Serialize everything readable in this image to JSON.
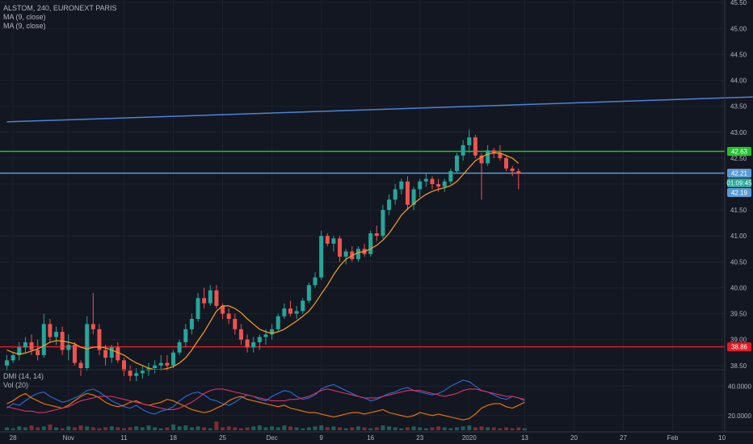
{
  "chart_data": {
    "type": "candlestick",
    "symbol_line": "ALSTOM, 240, EURONEXT PARIS",
    "indicators": [
      "MA (9, close)",
      "MA (9, close)"
    ],
    "sub_indicators": [
      "DMI (14, 14)",
      "Vol (20)"
    ],
    "y_ticks": [
      "45.50",
      "45.00",
      "44.50",
      "44.00",
      "43.50",
      "43.00",
      "42.50",
      "42.00",
      "41.50",
      "41.00",
      "40.50",
      "40.00",
      "39.50",
      "39.00",
      "38.50"
    ],
    "y_tick_values": [
      45.5,
      45,
      44.5,
      44,
      43.5,
      43,
      42.5,
      42,
      41.5,
      41,
      40.5,
      40,
      39.5,
      39,
      38.5
    ],
    "x_ticks": [
      "28",
      "Nov",
      "11",
      "18",
      "25",
      "Dec",
      "9",
      "16",
      "23",
      "2020",
      "13",
      "20",
      "27",
      "Feb",
      "10"
    ],
    "x_tick_bar_index": [
      1,
      10,
      19,
      27,
      35,
      43,
      51,
      59,
      67,
      75,
      84,
      92,
      100,
      108,
      116
    ],
    "ylim": [
      38.45,
      45.55
    ],
    "sub_ticks": [
      "40.0000",
      "20.0000"
    ],
    "sub_tick_values": [
      40,
      20
    ],
    "sub_ylim": [
      10,
      50
    ],
    "levels": [
      {
        "value": 42.63,
        "label": "42.63",
        "color": "#22c22a"
      },
      {
        "value": 42.21,
        "label": "42.21",
        "color": "#5b9bd5"
      },
      {
        "value": 38.86,
        "label": "38.86",
        "color": "#e31b23"
      }
    ],
    "price_tags": [
      {
        "label": "01:09:45",
        "bg": "#26a69a"
      },
      {
        "label": "42.19",
        "bg": "#5b9bd5"
      }
    ],
    "trendline": {
      "from": [
        0,
        43.2
      ],
      "to": [
        121,
        43.68
      ],
      "color": "#4d83d6"
    },
    "candles": [
      [
        38.5,
        38.7,
        38.4,
        38.6
      ],
      [
        38.6,
        38.75,
        38.55,
        38.7
      ],
      [
        38.7,
        38.95,
        38.6,
        38.85
      ],
      [
        38.85,
        39.05,
        38.75,
        38.95
      ],
      [
        38.95,
        39.1,
        38.7,
        38.8
      ],
      [
        38.8,
        39.0,
        38.6,
        38.7
      ],
      [
        38.7,
        39.5,
        38.65,
        39.3
      ],
      [
        39.3,
        39.4,
        38.95,
        39.05
      ],
      [
        39.05,
        39.25,
        38.9,
        39.15
      ],
      [
        39.15,
        39.25,
        38.7,
        38.8
      ],
      [
        38.8,
        39.1,
        38.6,
        38.9
      ],
      [
        38.9,
        38.95,
        38.5,
        38.55
      ],
      [
        38.55,
        38.6,
        38.3,
        38.45
      ],
      [
        38.45,
        39.45,
        38.4,
        39.3
      ],
      [
        39.3,
        39.9,
        39.1,
        39.2
      ],
      [
        39.2,
        39.3,
        38.7,
        38.8
      ],
      [
        38.8,
        38.9,
        38.5,
        38.65
      ],
      [
        38.65,
        38.9,
        38.55,
        38.85
      ],
      [
        38.85,
        38.95,
        38.55,
        38.6
      ],
      [
        38.6,
        38.65,
        38.3,
        38.4
      ],
      [
        38.4,
        38.5,
        38.2,
        38.3
      ],
      [
        38.3,
        38.45,
        38.2,
        38.35
      ],
      [
        38.35,
        38.5,
        38.25,
        38.4
      ],
      [
        38.4,
        38.55,
        38.3,
        38.45
      ],
      [
        38.45,
        38.6,
        38.35,
        38.5
      ],
      [
        38.5,
        38.7,
        38.4,
        38.55
      ],
      [
        38.55,
        38.7,
        38.4,
        38.5
      ],
      [
        38.5,
        38.8,
        38.45,
        38.75
      ],
      [
        38.75,
        39.0,
        38.7,
        38.95
      ],
      [
        38.95,
        39.3,
        38.85,
        39.2
      ],
      [
        39.2,
        39.5,
        39.1,
        39.4
      ],
      [
        39.4,
        39.9,
        39.35,
        39.8
      ],
      [
        39.8,
        40.0,
        39.6,
        39.7
      ],
      [
        39.7,
        40.05,
        39.65,
        39.95
      ],
      [
        39.95,
        40.05,
        39.6,
        39.65
      ],
      [
        39.65,
        39.7,
        39.4,
        39.5
      ],
      [
        39.5,
        39.6,
        39.3,
        39.4
      ],
      [
        39.4,
        39.5,
        39.1,
        39.2
      ],
      [
        39.2,
        39.3,
        38.9,
        39.0
      ],
      [
        39.0,
        39.1,
        38.75,
        38.85
      ],
      [
        38.85,
        39.05,
        38.75,
        38.95
      ],
      [
        38.95,
        39.1,
        38.8,
        39.05
      ],
      [
        39.05,
        39.2,
        38.9,
        39.1
      ],
      [
        39.1,
        39.3,
        39.0,
        39.2
      ],
      [
        39.2,
        39.5,
        39.15,
        39.45
      ],
      [
        39.45,
        39.7,
        39.4,
        39.6
      ],
      [
        39.6,
        39.75,
        39.45,
        39.5
      ],
      [
        39.5,
        39.65,
        39.4,
        39.55
      ],
      [
        39.55,
        39.8,
        39.5,
        39.75
      ],
      [
        39.75,
        40.1,
        39.7,
        40.05
      ],
      [
        40.05,
        40.3,
        40.0,
        40.2
      ],
      [
        40.2,
        41.1,
        40.15,
        41.0
      ],
      [
        41.0,
        41.05,
        40.8,
        40.85
      ],
      [
        40.85,
        41.0,
        40.7,
        40.95
      ],
      [
        40.95,
        41.0,
        40.5,
        40.6
      ],
      [
        40.6,
        40.75,
        40.45,
        40.7
      ],
      [
        40.7,
        40.8,
        40.5,
        40.55
      ],
      [
        40.55,
        40.8,
        40.5,
        40.75
      ],
      [
        40.75,
        40.85,
        40.6,
        40.65
      ],
      [
        40.65,
        41.1,
        40.6,
        41.05
      ],
      [
        41.05,
        41.2,
        40.9,
        41.0
      ],
      [
        41.0,
        41.6,
        40.95,
        41.5
      ],
      [
        41.5,
        41.8,
        41.4,
        41.7
      ],
      [
        41.7,
        42.0,
        41.6,
        41.9
      ],
      [
        41.9,
        42.1,
        41.8,
        42.05
      ],
      [
        42.05,
        42.15,
        41.5,
        41.6
      ],
      [
        41.6,
        41.95,
        41.5,
        41.9
      ],
      [
        41.9,
        42.1,
        41.75,
        42.05
      ],
      [
        42.05,
        42.2,
        41.95,
        42.1
      ],
      [
        42.1,
        42.15,
        41.9,
        42.0
      ],
      [
        42.0,
        42.1,
        41.85,
        41.95
      ],
      [
        41.95,
        42.1,
        41.85,
        42.05
      ],
      [
        42.05,
        42.3,
        42.0,
        42.25
      ],
      [
        42.25,
        42.6,
        42.2,
        42.55
      ],
      [
        42.55,
        42.85,
        42.45,
        42.75
      ],
      [
        42.75,
        43.05,
        42.6,
        42.9
      ],
      [
        42.9,
        42.95,
        42.5,
        42.55
      ],
      [
        42.55,
        42.6,
        41.7,
        42.4
      ],
      [
        42.4,
        42.75,
        42.35,
        42.65
      ],
      [
        42.65,
        42.7,
        42.5,
        42.6
      ],
      [
        42.6,
        42.75,
        42.45,
        42.5
      ],
      [
        42.5,
        42.55,
        42.25,
        42.3
      ],
      [
        42.3,
        42.35,
        42.15,
        42.25
      ],
      [
        42.25,
        42.3,
        41.9,
        42.2
      ]
    ],
    "ma_line": [
      38.8,
      38.75,
      38.72,
      38.74,
      38.78,
      38.82,
      38.88,
      38.95,
      38.98,
      38.97,
      38.95,
      38.92,
      38.85,
      38.82,
      38.85,
      38.86,
      38.84,
      38.8,
      38.75,
      38.7,
      38.62,
      38.55,
      38.5,
      38.45,
      38.42,
      38.42,
      38.44,
      38.48,
      38.55,
      38.65,
      38.8,
      38.98,
      39.15,
      39.35,
      39.55,
      39.65,
      39.65,
      39.6,
      39.52,
      39.4,
      39.3,
      39.2,
      39.15,
      39.12,
      39.15,
      39.2,
      39.28,
      39.36,
      39.45,
      39.55,
      39.7,
      39.88,
      40.05,
      40.25,
      40.42,
      40.55,
      40.62,
      40.68,
      40.7,
      40.75,
      40.82,
      40.92,
      41.05,
      41.22,
      41.4,
      41.52,
      41.62,
      41.72,
      41.8,
      41.86,
      41.9,
      41.93,
      41.97,
      42.05,
      42.18,
      42.32,
      42.45,
      42.52,
      42.58,
      42.6,
      42.6,
      42.55,
      42.5,
      42.4
    ],
    "dmi_plus": [
      25,
      28,
      27,
      30,
      33,
      35,
      36,
      33,
      31,
      29,
      30,
      32,
      34,
      37,
      38,
      36,
      33,
      30,
      28,
      26,
      25,
      27,
      24,
      22,
      21,
      23,
      24,
      26,
      30,
      33,
      35,
      36,
      34,
      31,
      30,
      28,
      27,
      29,
      32,
      34,
      33,
      31,
      30,
      33,
      35,
      37,
      36,
      33,
      31,
      32,
      34,
      38,
      40,
      41,
      39,
      37,
      35,
      33,
      32,
      30,
      31,
      33,
      35,
      36,
      38,
      39,
      37,
      36,
      35,
      34,
      35,
      37,
      40,
      42,
      44,
      43,
      40,
      37,
      36,
      34,
      32,
      31,
      33,
      32,
      30
    ],
    "dmi_minus": [
      28,
      30,
      33,
      35,
      32,
      30,
      28,
      27,
      26,
      25,
      27,
      30,
      33,
      35,
      34,
      32,
      29,
      27,
      26,
      27,
      29,
      30,
      28,
      27,
      28,
      29,
      31,
      30,
      28,
      26,
      24,
      23,
      22,
      23,
      25,
      27,
      30,
      32,
      33,
      31,
      30,
      29,
      28,
      27,
      26,
      27,
      25,
      24,
      23,
      22,
      22,
      21,
      20,
      19,
      20,
      21,
      22,
      22,
      21,
      22,
      23,
      24,
      22,
      21,
      20,
      19,
      20,
      22,
      21,
      20,
      21,
      20,
      19,
      18,
      17,
      18,
      21,
      25,
      27,
      28,
      28,
      26,
      25,
      27,
      29
    ],
    "adx": [
      26,
      25,
      24,
      23,
      23,
      22,
      22,
      23,
      24,
      25,
      26,
      28,
      30,
      31,
      32,
      33,
      33,
      33,
      32,
      31,
      30,
      29,
      28,
      27,
      26,
      25,
      24,
      24,
      25,
      27,
      29,
      32,
      35,
      37,
      38,
      38,
      37,
      36,
      35,
      34,
      33,
      32,
      31,
      30,
      30,
      30,
      31,
      31,
      32,
      33,
      35,
      37,
      38,
      37,
      36,
      35,
      34,
      33,
      32,
      32,
      32,
      33,
      34,
      35,
      36,
      37,
      37,
      37,
      36,
      35,
      34,
      33,
      34,
      35,
      37,
      38,
      38,
      37,
      36,
      35,
      34,
      33,
      33,
      32,
      31
    ],
    "volume": [
      3,
      2,
      4,
      3,
      5,
      3,
      4,
      6,
      3,
      2,
      4,
      3,
      5,
      4,
      3,
      2,
      3,
      4,
      3,
      2,
      3,
      4,
      3,
      5,
      3,
      2,
      3,
      6,
      4,
      5,
      3,
      4,
      3,
      2,
      9,
      3,
      4,
      3,
      2,
      3,
      4,
      5,
      3,
      4,
      3,
      5,
      4,
      3,
      2,
      3,
      4,
      5,
      3,
      4,
      3,
      2,
      3,
      4,
      3,
      2,
      3,
      5,
      4,
      3,
      2,
      3,
      4,
      3,
      2,
      3,
      4,
      3,
      2,
      3,
      4,
      5,
      3,
      4,
      3,
      3,
      2,
      3,
      2,
      3,
      2
    ]
  }
}
